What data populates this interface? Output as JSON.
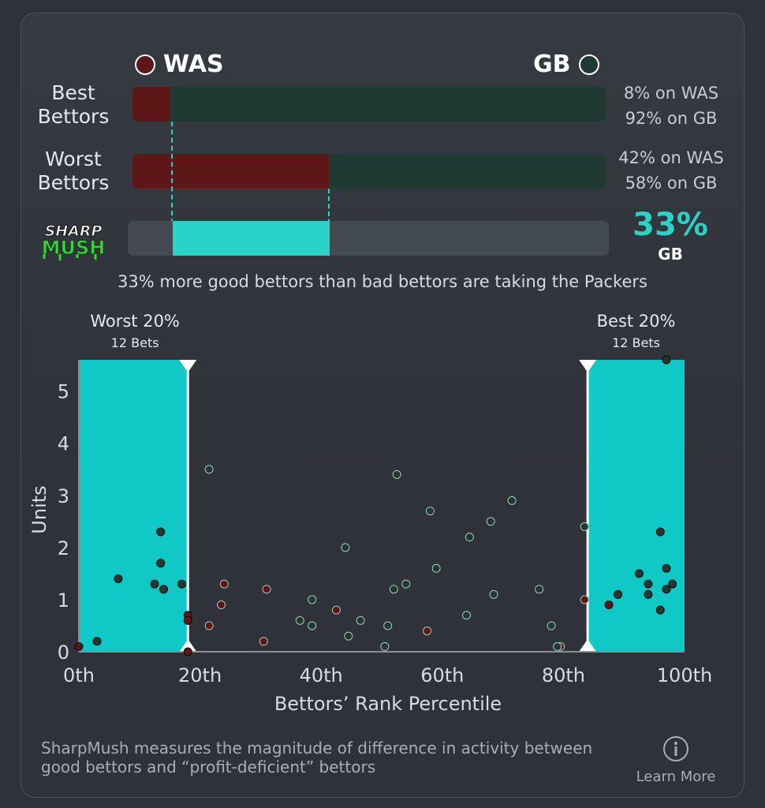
{
  "teams": {
    "away": {
      "abbr": "WAS",
      "color": "#5e1717"
    },
    "home": {
      "abbr": "GB",
      "color": "#1f3a33"
    }
  },
  "best_bettors": {
    "label": "Best\nBettors",
    "was_pct": 8,
    "gb_pct": 92,
    "was_text": "8% on WAS",
    "gb_text": "92% on GB"
  },
  "worst_bettors": {
    "label": "Worst\nBettors",
    "was_pct": 42,
    "gb_pct": 58,
    "was_text": "42% on WAS",
    "gb_text": "58% on GB"
  },
  "sharpmush": {
    "logo_top": "SHARP",
    "logo_bottom": "MUSH",
    "value_text": "33%",
    "team": "GB",
    "value": 33,
    "summary": "33% more good bettors than bad bettors are taking the Packers",
    "accent": "#2ad3c6"
  },
  "chart_data": {
    "type": "scatter",
    "xlabel": "Bettors’ Rank Percentile",
    "ylabel": "Units",
    "xlim": [
      0,
      100
    ],
    "ylim": [
      0,
      5.6
    ],
    "x_ticks": [
      "0th",
      "20th",
      "40th",
      "60th",
      "80th",
      "100th"
    ],
    "y_ticks": [
      0,
      1,
      2,
      3,
      4,
      5
    ],
    "highlight_left": {
      "title": "Worst 20%",
      "subtitle": "12 Bets",
      "range": [
        0,
        18
      ]
    },
    "highlight_right": {
      "title": "Best 20%",
      "subtitle": "12 Bets",
      "range": [
        84,
        100
      ]
    },
    "series": [
      {
        "name": "WAS",
        "color": "#5e1717",
        "points": [
          [
            0,
            0.1
          ],
          [
            18,
            0.7
          ],
          [
            18,
            0.6
          ],
          [
            18,
            0
          ],
          [
            21.5,
            0.5
          ],
          [
            23.5,
            0.9
          ],
          [
            24,
            1.3
          ],
          [
            30.5,
            0.2
          ],
          [
            31,
            1.2
          ],
          [
            42.5,
            0.8
          ],
          [
            57.5,
            0.4
          ],
          [
            79.5,
            0.1
          ],
          [
            83.5,
            1.0
          ],
          [
            87.5,
            0.9
          ]
        ]
      },
      {
        "name": "GB",
        "color": "#1f3a33",
        "points": [
          [
            3,
            0.2
          ],
          [
            6.5,
            1.4
          ],
          [
            12.5,
            1.3
          ],
          [
            13.5,
            2.3
          ],
          [
            13.5,
            1.7
          ],
          [
            14,
            1.2
          ],
          [
            17,
            1.3
          ],
          [
            21.5,
            3.5
          ],
          [
            36.5,
            0.6
          ],
          [
            38.5,
            1.0
          ],
          [
            38.5,
            0.5
          ],
          [
            44,
            2.0
          ],
          [
            44.5,
            0.3
          ],
          [
            46.5,
            0.6
          ],
          [
            50.5,
            0.1
          ],
          [
            51,
            0.5
          ],
          [
            52,
            1.2
          ],
          [
            52.5,
            3.4
          ],
          [
            54,
            1.3
          ],
          [
            58,
            2.7
          ],
          [
            59,
            1.6
          ],
          [
            64,
            0.7
          ],
          [
            64.5,
            2.2
          ],
          [
            68,
            2.5
          ],
          [
            68.5,
            1.1
          ],
          [
            71.5,
            2.9
          ],
          [
            76,
            1.2
          ],
          [
            78,
            0.5
          ],
          [
            79,
            0.1
          ],
          [
            83.5,
            2.4
          ],
          [
            89,
            1.1
          ],
          [
            92.5,
            1.5
          ],
          [
            94,
            1.3
          ],
          [
            94,
            1.1
          ],
          [
            96,
            2.3
          ],
          [
            96,
            0.8
          ],
          [
            97,
            1.6
          ],
          [
            97,
            1.2
          ],
          [
            98,
            1.3
          ],
          [
            97,
            5.6
          ]
        ]
      }
    ]
  },
  "footer": {
    "text": "SharpMush measures the magnitude of difference in activity between good bettors and “profit-deficient” bettors",
    "learn_more": "Learn More"
  }
}
